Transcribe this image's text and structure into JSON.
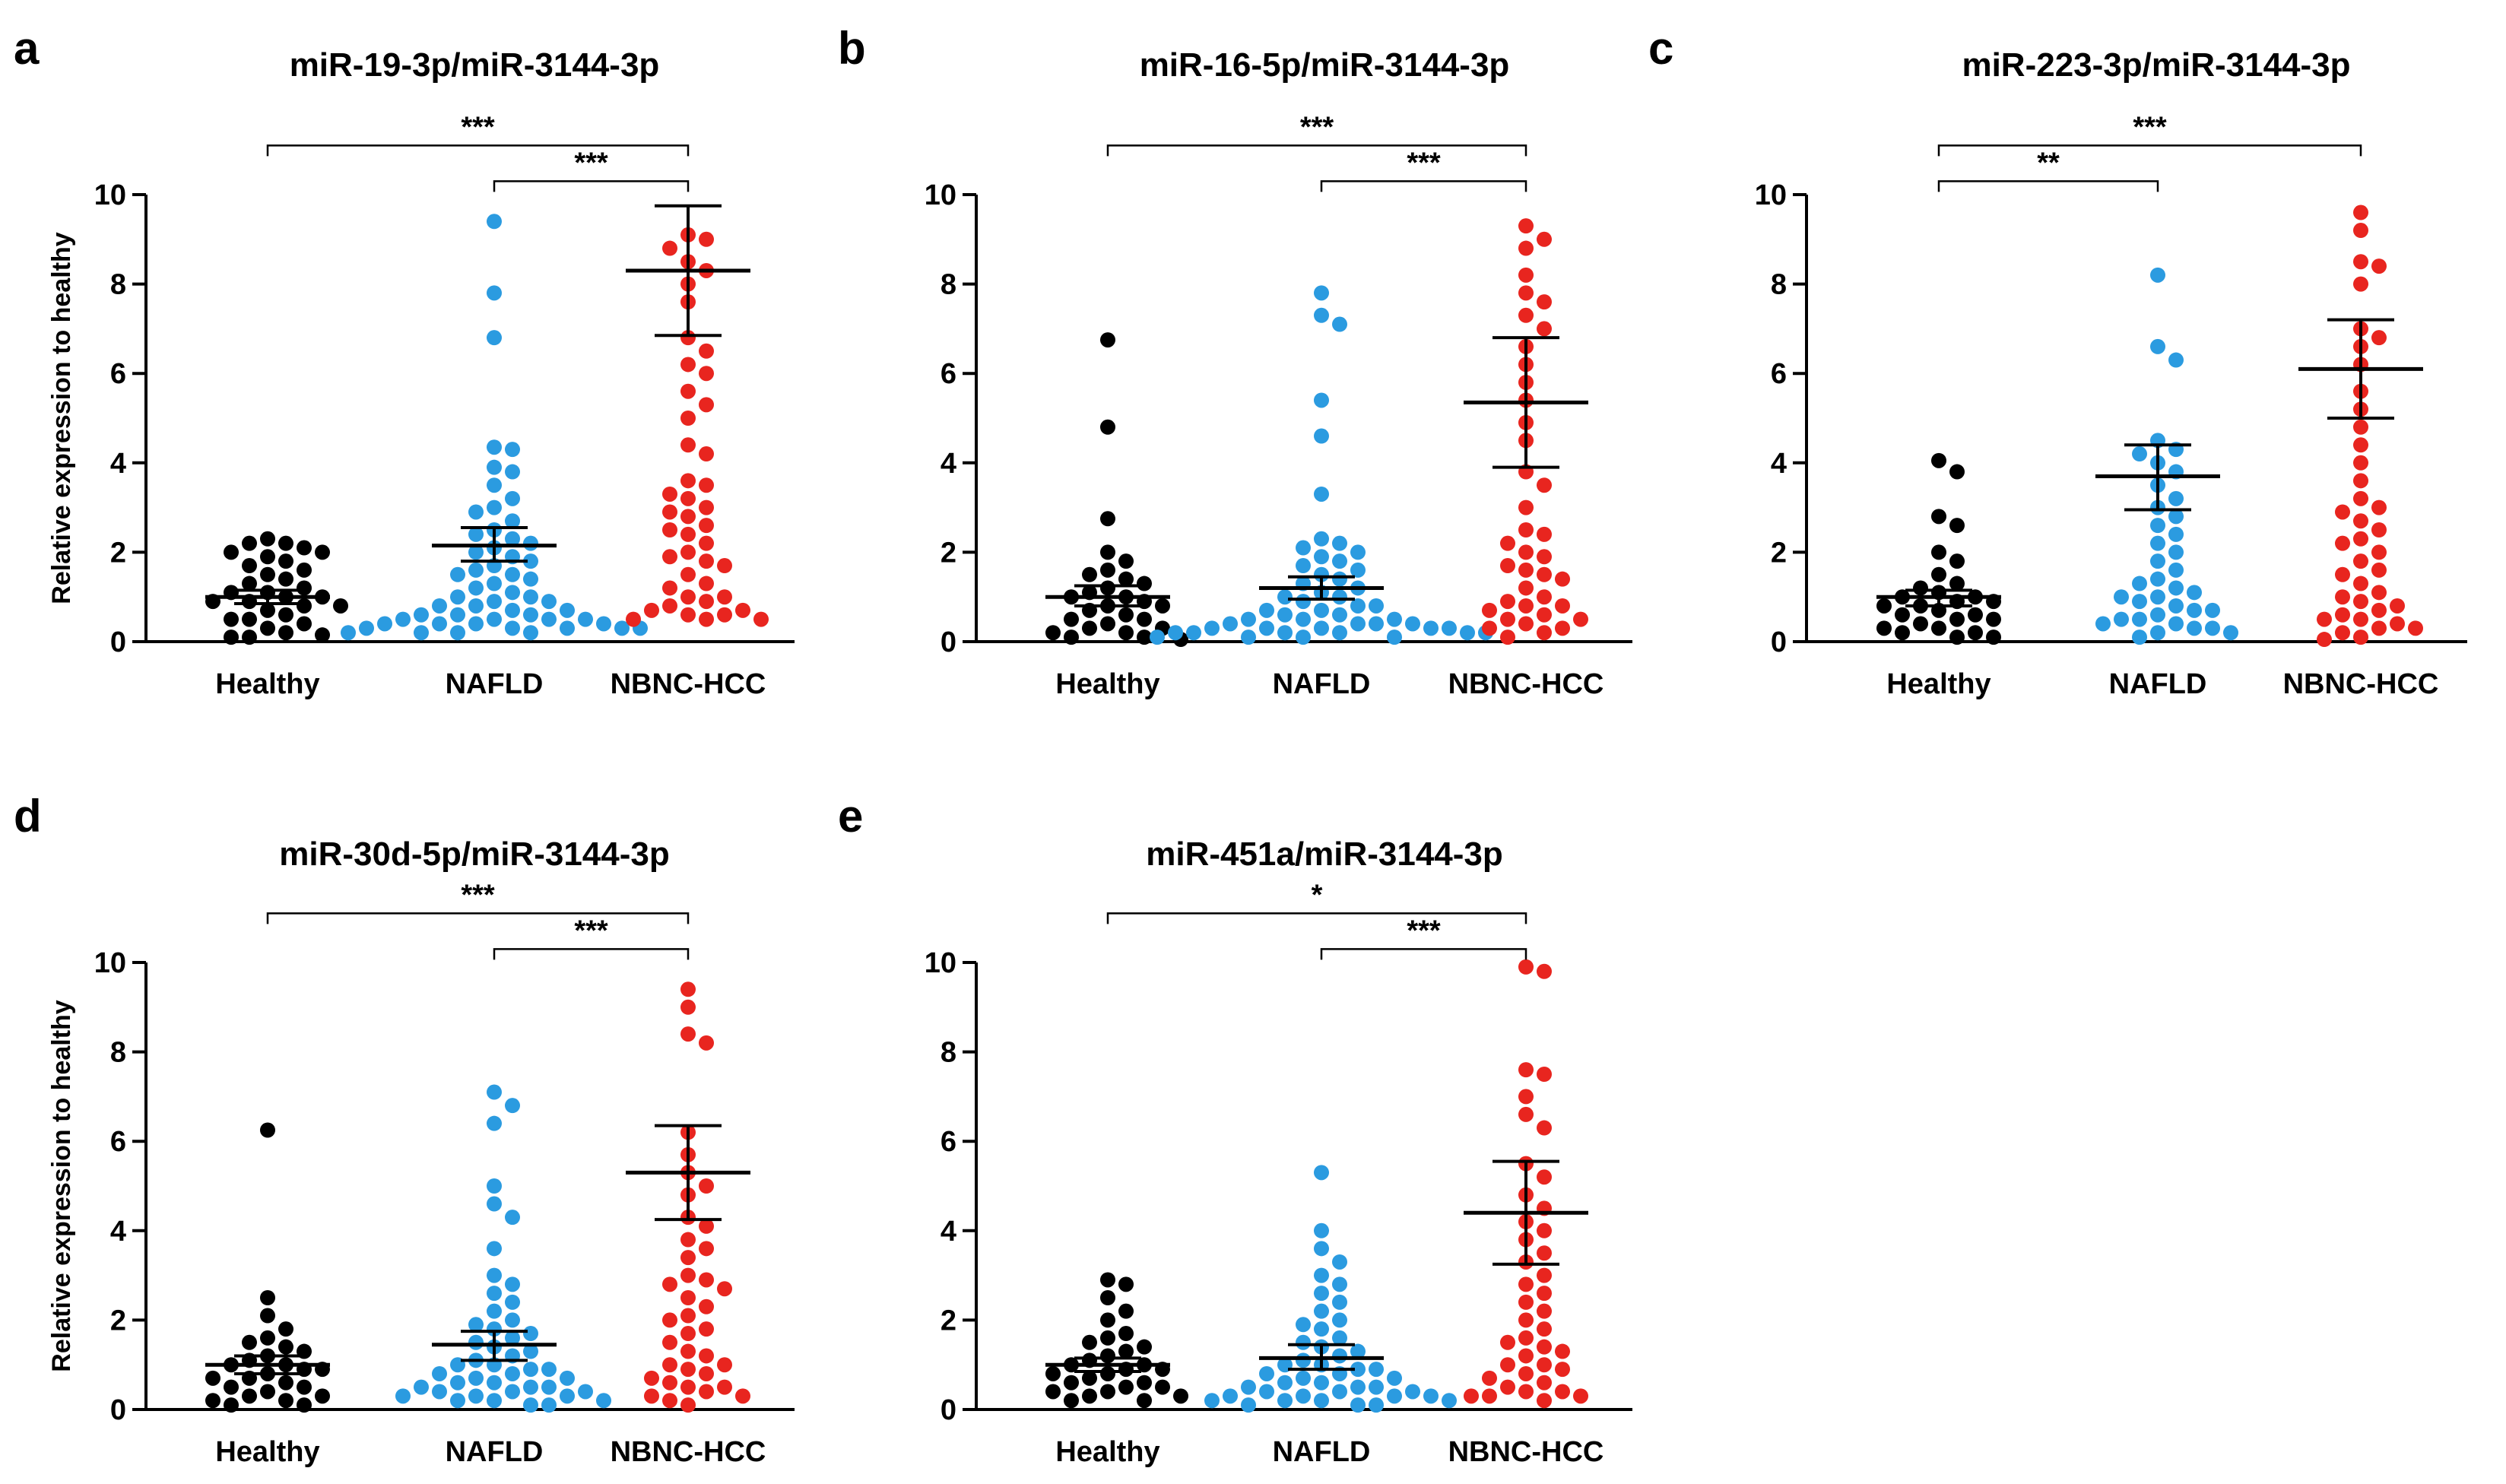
{
  "chart_data": [
    {
      "panel": "a",
      "title": "miR-19-3p/miR-3144-3p",
      "type": "scatter",
      "ylabel": "Relative expression to healthy",
      "ylim": [
        0,
        10
      ],
      "yticks": [
        0,
        2,
        4,
        6,
        8,
        10
      ],
      "categories": [
        "Healthy",
        "NAFLD",
        "NBNC-HCC"
      ],
      "colors": [
        "#000000",
        "#2b9be0",
        "#e8251f"
      ],
      "series": [
        {
          "name": "Healthy",
          "mean": 1.0,
          "err_low": 0.85,
          "err_high": 1.15,
          "values": [
            2.3,
            2.2,
            2.2,
            2.1,
            2.0,
            2.0,
            1.9,
            1.8,
            1.7,
            1.6,
            1.5,
            1.4,
            1.3,
            1.2,
            1.1,
            1.1,
            1.0,
            1.0,
            0.9,
            0.9,
            0.8,
            0.8,
            0.7,
            0.6,
            0.5,
            0.5,
            0.4,
            0.3,
            0.2,
            0.15,
            0.1,
            0.1
          ]
        },
        {
          "name": "NAFLD",
          "mean": 2.15,
          "err_low": 1.8,
          "err_high": 2.55,
          "values": [
            9.4,
            7.8,
            6.8,
            4.35,
            4.3,
            3.9,
            3.8,
            3.5,
            3.2,
            3.0,
            2.9,
            2.7,
            2.5,
            2.4,
            2.3,
            2.2,
            2.1,
            2.0,
            1.9,
            1.8,
            1.7,
            1.6,
            1.5,
            1.5,
            1.4,
            1.3,
            1.2,
            1.1,
            1.0,
            1.0,
            0.9,
            0.9,
            0.8,
            0.8,
            0.7,
            0.7,
            0.6,
            0.6,
            0.6,
            0.5,
            0.5,
            0.5,
            0.5,
            0.4,
            0.4,
            0.4,
            0.4,
            0.3,
            0.3,
            0.3,
            0.3,
            0.3,
            0.2,
            0.2,
            0.2,
            0.2
          ]
        },
        {
          "name": "NBNC-HCC",
          "mean": 8.3,
          "err_low": 6.85,
          "err_high": 9.75,
          "values": [
            9.1,
            9.0,
            8.8,
            8.5,
            8.3,
            8.0,
            7.6,
            6.8,
            6.5,
            6.2,
            6.0,
            5.6,
            5.3,
            5.0,
            4.4,
            4.2,
            3.6,
            3.5,
            3.3,
            3.2,
            3.0,
            2.9,
            2.8,
            2.6,
            2.5,
            2.4,
            2.2,
            2.0,
            1.9,
            1.8,
            1.7,
            1.5,
            1.3,
            1.2,
            1.0,
            1.0,
            0.9,
            0.8,
            0.7,
            0.7,
            0.6,
            0.6,
            0.5,
            0.5,
            0.5
          ]
        }
      ],
      "significance": [
        {
          "from": 0,
          "to": 2,
          "label": "***",
          "y": 11.1
        },
        {
          "from": 1,
          "to": 2,
          "label": "***",
          "y": 10.3
        }
      ]
    },
    {
      "panel": "b",
      "title": "miR-16-5p/miR-3144-3p",
      "type": "scatter",
      "ylabel": "",
      "ylim": [
        0,
        10
      ],
      "yticks": [
        0,
        2,
        4,
        6,
        8,
        10
      ],
      "categories": [
        "Healthy",
        "NAFLD",
        "NBNC-HCC"
      ],
      "colors": [
        "#000000",
        "#2b9be0",
        "#e8251f"
      ],
      "series": [
        {
          "name": "Healthy",
          "mean": 1.0,
          "err_low": 0.8,
          "err_high": 1.25,
          "values": [
            6.75,
            4.8,
            2.75,
            2.0,
            1.8,
            1.6,
            1.5,
            1.4,
            1.3,
            1.2,
            1.1,
            1.0,
            1.0,
            0.9,
            0.8,
            0.8,
            0.7,
            0.6,
            0.5,
            0.5,
            0.4,
            0.3,
            0.3,
            0.2,
            0.2,
            0.1,
            0.1,
            0.05
          ]
        },
        {
          "name": "NAFLD",
          "mean": 1.2,
          "err_low": 0.95,
          "err_high": 1.45,
          "values": [
            7.8,
            7.3,
            7.1,
            5.4,
            4.6,
            3.3,
            2.3,
            2.2,
            2.1,
            2.0,
            1.9,
            1.8,
            1.7,
            1.6,
            1.5,
            1.4,
            1.3,
            1.2,
            1.1,
            1.0,
            1.0,
            0.9,
            0.8,
            0.8,
            0.7,
            0.7,
            0.6,
            0.6,
            0.5,
            0.5,
            0.5,
            0.4,
            0.4,
            0.4,
            0.4,
            0.3,
            0.3,
            0.3,
            0.3,
            0.3,
            0.2,
            0.2,
            0.2,
            0.2,
            0.2,
            0.2,
            0.1,
            0.1,
            0.1,
            0.1
          ]
        },
        {
          "name": "NBNC-HCC",
          "mean": 5.35,
          "err_low": 3.9,
          "err_high": 6.8,
          "values": [
            9.3,
            9.0,
            8.8,
            8.2,
            7.8,
            7.6,
            7.3,
            7.0,
            6.6,
            6.2,
            5.8,
            5.4,
            4.9,
            4.5,
            3.8,
            3.5,
            3.0,
            2.5,
            2.4,
            2.2,
            2.0,
            1.9,
            1.7,
            1.6,
            1.5,
            1.4,
            1.2,
            1.0,
            0.9,
            0.8,
            0.8,
            0.7,
            0.6,
            0.5,
            0.5,
            0.4,
            0.3,
            0.3,
            0.2,
            0.1
          ]
        }
      ],
      "significance": [
        {
          "from": 0,
          "to": 2,
          "label": "***",
          "y": 11.1
        },
        {
          "from": 1,
          "to": 2,
          "label": "***",
          "y": 10.3
        }
      ]
    },
    {
      "panel": "c",
      "title": "miR-223-3p/miR-3144-3p",
      "type": "scatter",
      "ylabel": "",
      "ylim": [
        0,
        10
      ],
      "yticks": [
        0,
        2,
        4,
        6,
        8,
        10
      ],
      "categories": [
        "Healthy",
        "NAFLD",
        "NBNC-HCC"
      ],
      "colors": [
        "#000000",
        "#2b9be0",
        "#e8251f"
      ],
      "series": [
        {
          "name": "Healthy",
          "mean": 1.0,
          "err_low": 0.8,
          "err_high": 1.15,
          "values": [
            4.05,
            3.8,
            2.8,
            2.6,
            2.0,
            1.8,
            1.5,
            1.3,
            1.2,
            1.1,
            1.0,
            1.0,
            0.9,
            0.9,
            0.8,
            0.8,
            0.7,
            0.6,
            0.6,
            0.5,
            0.5,
            0.4,
            0.3,
            0.3,
            0.2,
            0.2,
            0.1,
            0.1
          ]
        },
        {
          "name": "NAFLD",
          "mean": 3.7,
          "err_low": 2.95,
          "err_high": 4.4,
          "values": [
            8.2,
            6.6,
            6.3,
            4.5,
            4.3,
            4.2,
            4.0,
            3.8,
            3.5,
            3.2,
            3.0,
            2.8,
            2.6,
            2.4,
            2.2,
            2.0,
            1.8,
            1.6,
            1.4,
            1.3,
            1.2,
            1.1,
            1.0,
            1.0,
            0.9,
            0.8,
            0.7,
            0.7,
            0.6,
            0.5,
            0.5,
            0.4,
            0.4,
            0.3,
            0.3,
            0.2,
            0.2,
            0.1
          ]
        },
        {
          "name": "NBNC-HCC",
          "mean": 6.1,
          "err_low": 5.0,
          "err_high": 7.2,
          "values": [
            9.6,
            9.2,
            8.5,
            8.4,
            8.0,
            7.0,
            6.8,
            6.6,
            6.2,
            5.6,
            5.2,
            4.8,
            4.4,
            4.0,
            3.6,
            3.2,
            3.0,
            2.9,
            2.7,
            2.5,
            2.3,
            2.2,
            2.0,
            1.8,
            1.6,
            1.5,
            1.3,
            1.1,
            1.0,
            0.9,
            0.8,
            0.7,
            0.6,
            0.5,
            0.5,
            0.4,
            0.3,
            0.3,
            0.2,
            0.1,
            0.05
          ]
        }
      ],
      "significance": [
        {
          "from": 0,
          "to": 2,
          "label": "***",
          "y": 11.1
        },
        {
          "from": 0,
          "to": 1,
          "label": "**",
          "y": 10.3
        }
      ]
    },
    {
      "panel": "d",
      "title": "miR-30d-5p/miR-3144-3p",
      "type": "scatter",
      "ylabel": "Relative expression to healthy",
      "ylim": [
        0,
        10
      ],
      "yticks": [
        0,
        2,
        4,
        6,
        8,
        10
      ],
      "categories": [
        "Healthy",
        "NAFLD",
        "NBNC-HCC"
      ],
      "colors": [
        "#000000",
        "#2b9be0",
        "#e8251f"
      ],
      "series": [
        {
          "name": "Healthy",
          "mean": 1.0,
          "err_low": 0.8,
          "err_high": 1.2,
          "values": [
            6.25,
            2.5,
            2.1,
            1.8,
            1.6,
            1.5,
            1.4,
            1.3,
            1.2,
            1.1,
            1.0,
            1.0,
            0.9,
            0.9,
            0.8,
            0.7,
            0.7,
            0.6,
            0.5,
            0.5,
            0.4,
            0.3,
            0.3,
            0.2,
            0.2,
            0.1,
            0.1
          ]
        },
        {
          "name": "NAFLD",
          "mean": 1.45,
          "err_low": 1.1,
          "err_high": 1.75,
          "values": [
            7.1,
            6.8,
            6.4,
            5.0,
            4.6,
            4.3,
            3.6,
            3.0,
            2.8,
            2.6,
            2.4,
            2.2,
            2.0,
            1.9,
            1.8,
            1.7,
            1.6,
            1.5,
            1.4,
            1.3,
            1.2,
            1.1,
            1.0,
            1.0,
            0.9,
            0.9,
            0.8,
            0.8,
            0.7,
            0.7,
            0.6,
            0.6,
            0.5,
            0.5,
            0.5,
            0.4,
            0.4,
            0.4,
            0.3,
            0.3,
            0.3,
            0.2,
            0.2,
            0.2,
            0.1,
            0.1
          ]
        },
        {
          "name": "NBNC-HCC",
          "mean": 5.3,
          "err_low": 4.25,
          "err_high": 6.35,
          "values": [
            9.4,
            9.0,
            8.4,
            8.2,
            6.2,
            5.7,
            5.3,
            5.0,
            4.8,
            4.3,
            4.1,
            3.8,
            3.6,
            3.4,
            3.0,
            2.9,
            2.8,
            2.7,
            2.5,
            2.3,
            2.1,
            2.0,
            1.8,
            1.7,
            1.5,
            1.3,
            1.2,
            1.0,
            1.0,
            0.9,
            0.8,
            0.7,
            0.6,
            0.5,
            0.5,
            0.4,
            0.3,
            0.3,
            0.2,
            0.1
          ]
        }
      ],
      "significance": [
        {
          "from": 0,
          "to": 2,
          "label": "***",
          "y": 11.1
        },
        {
          "from": 1,
          "to": 2,
          "label": "***",
          "y": 10.3
        }
      ]
    },
    {
      "panel": "e",
      "title": "miR-451a/miR-3144-3p",
      "type": "scatter",
      "ylabel": "",
      "ylim": [
        0,
        10
      ],
      "yticks": [
        0,
        2,
        4,
        6,
        8,
        10
      ],
      "categories": [
        "Healthy",
        "NAFLD",
        "NBNC-HCC"
      ],
      "colors": [
        "#000000",
        "#2b9be0",
        "#e8251f"
      ],
      "series": [
        {
          "name": "Healthy",
          "mean": 1.0,
          "err_low": 0.85,
          "err_high": 1.15,
          "values": [
            2.9,
            2.8,
            2.5,
            2.2,
            2.0,
            1.7,
            1.6,
            1.5,
            1.4,
            1.3,
            1.2,
            1.1,
            1.0,
            1.0,
            0.9,
            0.9,
            0.8,
            0.8,
            0.7,
            0.6,
            0.6,
            0.5,
            0.5,
            0.4,
            0.4,
            0.3,
            0.3,
            0.2,
            0.2
          ]
        },
        {
          "name": "NAFLD",
          "mean": 1.15,
          "err_low": 0.9,
          "err_high": 1.45,
          "values": [
            5.3,
            4.0,
            3.6,
            3.3,
            3.0,
            2.8,
            2.6,
            2.4,
            2.2,
            2.0,
            1.9,
            1.8,
            1.6,
            1.5,
            1.4,
            1.3,
            1.2,
            1.1,
            1.0,
            1.0,
            0.9,
            0.9,
            0.8,
            0.8,
            0.7,
            0.7,
            0.6,
            0.6,
            0.5,
            0.5,
            0.5,
            0.4,
            0.4,
            0.4,
            0.3,
            0.3,
            0.3,
            0.3,
            0.2,
            0.2,
            0.2,
            0.2,
            0.1,
            0.1,
            0.1
          ]
        },
        {
          "name": "NBNC-HCC",
          "mean": 4.4,
          "err_low": 3.25,
          "err_high": 5.55,
          "values": [
            9.9,
            9.8,
            7.6,
            7.5,
            7.0,
            6.6,
            6.3,
            5.5,
            5.2,
            4.8,
            4.5,
            4.2,
            4.0,
            3.8,
            3.5,
            3.3,
            3.0,
            2.8,
            2.6,
            2.4,
            2.2,
            2.0,
            1.8,
            1.6,
            1.5,
            1.4,
            1.3,
            1.2,
            1.0,
            1.0,
            0.9,
            0.8,
            0.7,
            0.6,
            0.5,
            0.4,
            0.4,
            0.3,
            0.3,
            0.3,
            0.2
          ]
        }
      ],
      "significance": [
        {
          "from": 0,
          "to": 2,
          "label": "*",
          "y": 11.1
        },
        {
          "from": 1,
          "to": 2,
          "label": "***",
          "y": 10.3
        }
      ]
    }
  ]
}
